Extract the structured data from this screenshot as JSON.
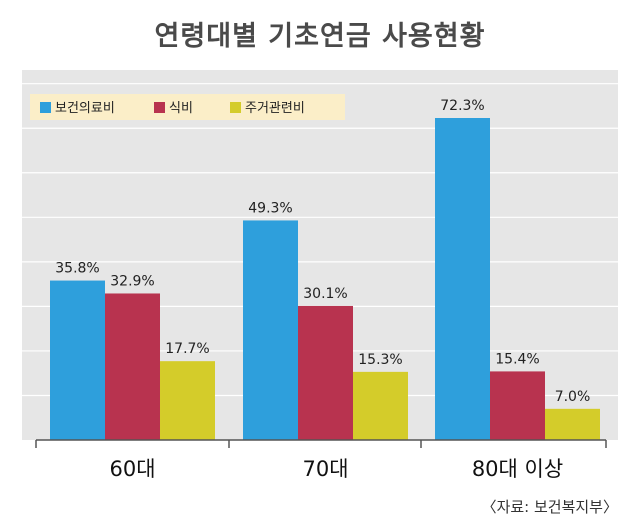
{
  "chart_data": {
    "type": "bar",
    "title": "연령대별 기초연금 사용현황",
    "categories": [
      "60대",
      "70대",
      "80대 이상"
    ],
    "series": [
      {
        "name": "보건의료비",
        "values": [
          35.8,
          49.3,
          72.3
        ],
        "labels": [
          "35.8%",
          "49.3%",
          "72.3%"
        ],
        "color": "#2e9fdc"
      },
      {
        "name": "식비",
        "values": [
          32.9,
          30.1,
          15.4
        ],
        "labels": [
          "32.9%",
          "30.1%",
          "15.4%"
        ],
        "color": "#b8334f"
      },
      {
        "name": "주거관련비",
        "values": [
          17.7,
          15.3,
          7.0
        ],
        "labels": [
          "17.7%",
          "15.3%",
          "7.0%"
        ],
        "color": "#d4cc2a"
      }
    ],
    "ylim": [
      0,
      80
    ],
    "grid": true,
    "legend": "top-left",
    "source": "〈자료: 보건복지부〉"
  },
  "colors": {
    "plot_background": "#e6e6e6",
    "legend_background": "#fbeec8",
    "gridline": "#ffffff",
    "axis": "#555555"
  }
}
